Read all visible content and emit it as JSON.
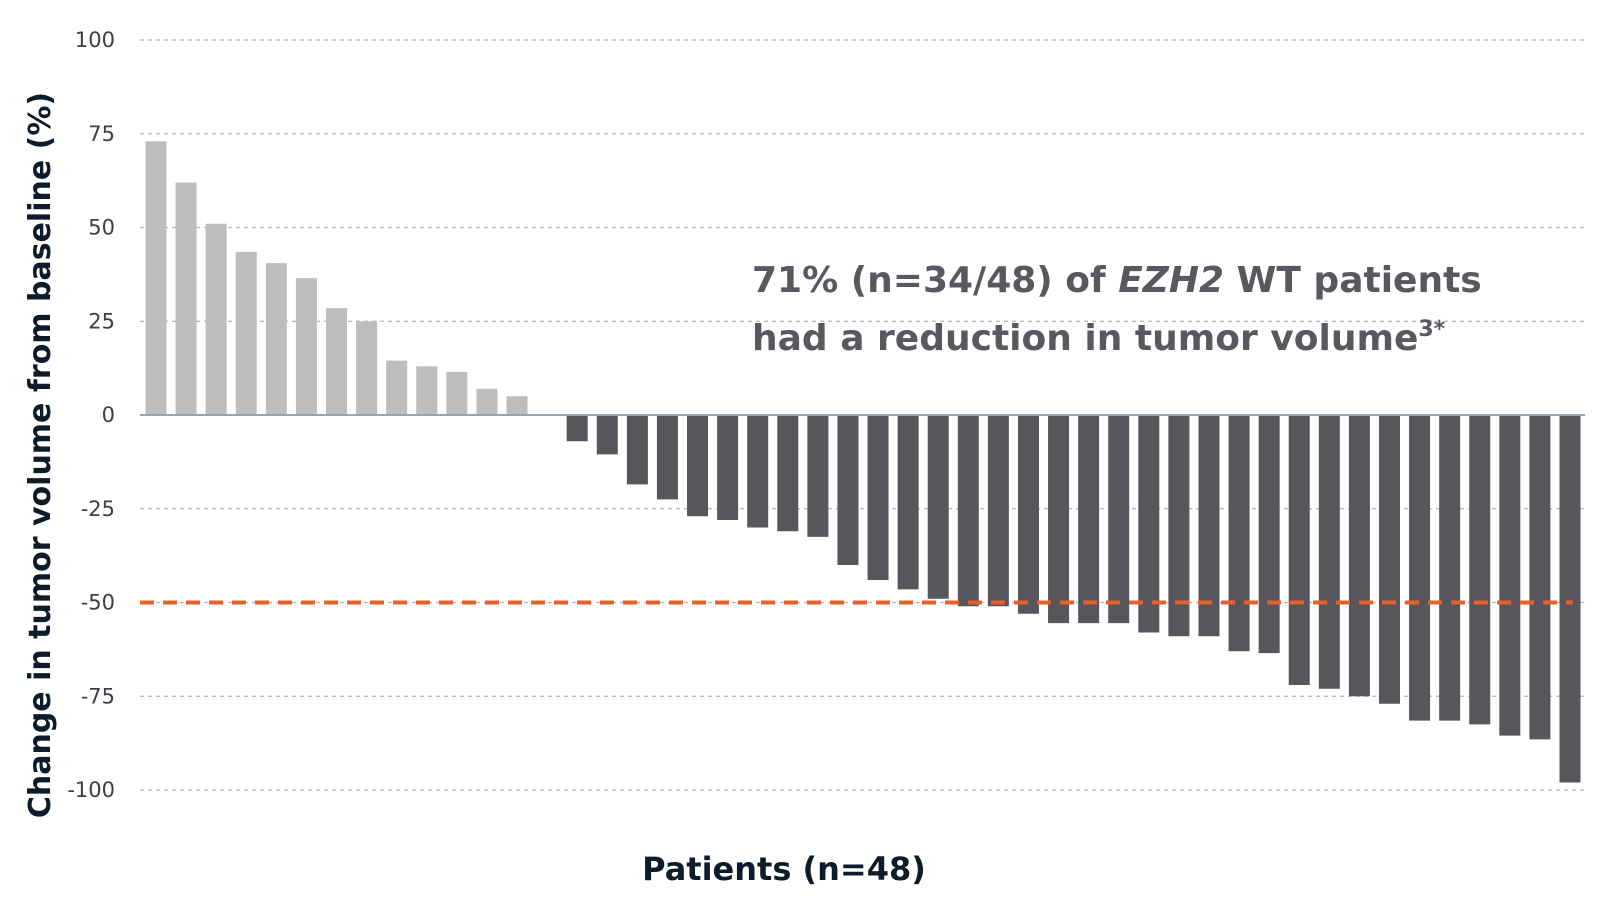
{
  "chart_data": {
    "type": "bar",
    "title": "",
    "xlabel": "Patients (n=48)",
    "ylabel": "Change in tumor volume from baseline (%)",
    "ylim": [
      -100,
      100
    ],
    "yticks": [
      100,
      75,
      50,
      25,
      0,
      -25,
      -50,
      -75,
      -100
    ],
    "ytick_labels": [
      "100",
      "75",
      "50",
      "25",
      "0",
      "-25",
      "-50",
      "-75",
      "-100"
    ],
    "grid": "horizontal dashed",
    "colors": {
      "increase": "#bdbdbd",
      "decrease": "#58555b",
      "threshold": "#e8602a",
      "zero_line": "#9aa4ae",
      "grid": "#b5b5b5"
    },
    "reference_line": {
      "y": -50
    },
    "annotation": {
      "line1_prefix": "71% (n=34/48) of ",
      "line1_italic": "EZH2",
      "line1_suffix": " WT patients",
      "line2_text": "had a reduction in tumor volume",
      "line2_sup": "3*"
    },
    "values": [
      73,
      62,
      51,
      43.5,
      40.5,
      36.5,
      28.5,
      25,
      14.5,
      13,
      11.5,
      7,
      5,
      0,
      -7,
      -10.5,
      -18.5,
      -22.5,
      -27,
      -28,
      -30,
      -31,
      -32.5,
      -40,
      -44,
      -46.5,
      -49,
      -51,
      -51,
      -53,
      -55.5,
      -55.5,
      -55.5,
      -58,
      -59,
      -59,
      -63,
      -63.5,
      -72,
      -73,
      -75,
      -77,
      -81.5,
      -81.5,
      -82.5,
      -85.5,
      -86.5,
      -98
    ]
  }
}
